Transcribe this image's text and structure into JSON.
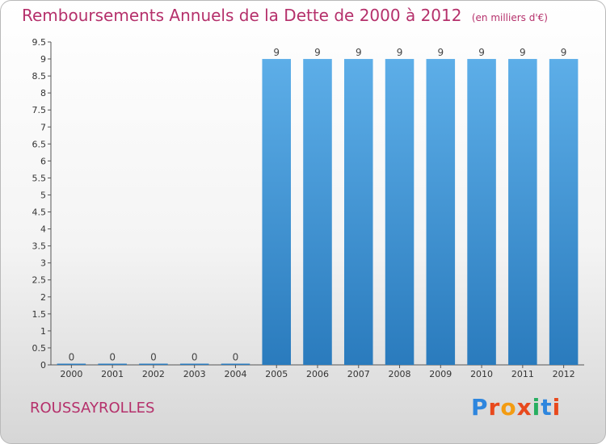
{
  "header": {
    "title": "Remboursements Annuels de la Dette de 2000 à 2012",
    "unit": "(en milliers d'€)"
  },
  "footer": {
    "place": "ROUSSAYROLLES",
    "logo": "Proxiti",
    "logo_colors": [
      "#2e86de",
      "#e8491d",
      "#f39c12",
      "#e8491d",
      "#27ae60",
      "#2e86de",
      "#e8491d"
    ]
  },
  "chart_data": {
    "type": "bar",
    "categories": [
      "2000",
      "2001",
      "2002",
      "2003",
      "2004",
      "2005",
      "2006",
      "2007",
      "2008",
      "2009",
      "2010",
      "2011",
      "2012"
    ],
    "values": [
      0,
      0,
      0,
      0,
      0,
      9,
      9,
      9,
      9,
      9,
      9,
      9,
      9
    ],
    "data_labels": [
      "0",
      "0",
      "0",
      "0",
      "0",
      "9",
      "9",
      "9",
      "9",
      "9",
      "9",
      "9",
      "9"
    ],
    "ylim": [
      0,
      9.5
    ],
    "yticks": [
      0,
      0.5,
      1,
      1.5,
      2,
      2.5,
      3,
      3.5,
      4,
      4.5,
      5,
      5.5,
      6,
      6.5,
      7,
      7.5,
      8,
      8.5,
      9,
      9.5
    ],
    "ytick_labels": [
      "0",
      "0.5",
      "1",
      "1.5",
      "2",
      "2.5",
      "3",
      "3.5",
      "4",
      "4.5",
      "5",
      "5.5",
      "6",
      "6.5",
      "7",
      "7.5",
      "8",
      "8.5",
      "9",
      "9.5"
    ],
    "grid": false,
    "bar_color_top": "#5daee8",
    "bar_color_bottom": "#2a7bbd"
  }
}
